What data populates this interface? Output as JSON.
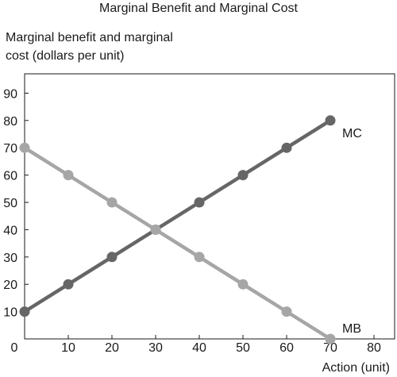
{
  "chart_data": {
    "type": "line",
    "title": "Marginal Benefit and Marginal Cost",
    "ylabel_line1": "Marginal benefit and marginal",
    "ylabel_line2": "cost (dollars per unit)",
    "xlabel": "Action (unit)",
    "x": [
      0,
      10,
      20,
      30,
      40,
      50,
      60,
      70
    ],
    "xlim": [
      0,
      85
    ],
    "ylim": [
      0,
      100
    ],
    "xticks": [
      0,
      10,
      20,
      30,
      40,
      50,
      60,
      70,
      80
    ],
    "yticks": [
      10,
      20,
      30,
      40,
      50,
      60,
      70,
      80,
      90
    ],
    "grid": false,
    "series": [
      {
        "name": "MC",
        "values": [
          10,
          20,
          30,
          40,
          50,
          60,
          70,
          80
        ],
        "color": "#666666"
      },
      {
        "name": "MB",
        "values": [
          70,
          60,
          50,
          40,
          30,
          20,
          10,
          0
        ],
        "color": "#a6a6a6"
      }
    ]
  }
}
